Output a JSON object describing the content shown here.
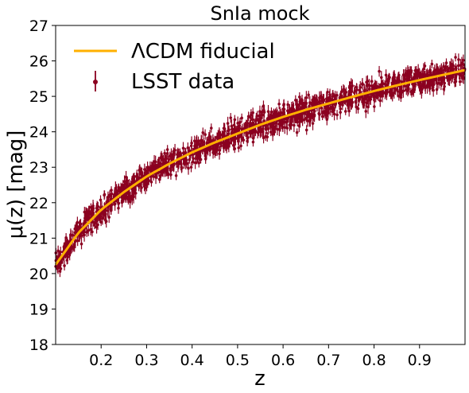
{
  "chart_data": {
    "type": "scatter",
    "title": "SnIa mock",
    "xlabel": "z",
    "ylabel": "μ(z) [mag]",
    "xlim": [
      0.1,
      1.0
    ],
    "ylim": [
      18,
      27
    ],
    "xticks": [
      0.2,
      0.3,
      0.4,
      0.5,
      0.6,
      0.7,
      0.8,
      0.9
    ],
    "xtick_labels": [
      "0.2",
      "0.3",
      "0.4",
      "0.5",
      "0.6",
      "0.7",
      "0.8",
      "0.9"
    ],
    "yticks": [
      18,
      19,
      20,
      21,
      22,
      23,
      24,
      25,
      26,
      27
    ],
    "ytick_labels": [
      "18",
      "19",
      "20",
      "21",
      "22",
      "23",
      "24",
      "25",
      "26",
      "27"
    ],
    "legend_position": "upper-left",
    "grid": false,
    "series": [
      {
        "name": "ΛCDM fiducial",
        "kind": "line",
        "color": "#FFB000",
        "x": [
          0.1,
          0.15,
          0.2,
          0.25,
          0.3,
          0.35,
          0.4,
          0.45,
          0.5,
          0.55,
          0.6,
          0.65,
          0.7,
          0.75,
          0.8,
          0.85,
          0.9,
          0.95,
          1.0
        ],
        "y": [
          20.25,
          21.15,
          21.8,
          22.3,
          22.74,
          23.1,
          23.42,
          23.7,
          23.95,
          24.2,
          24.42,
          24.62,
          24.8,
          24.98,
          25.15,
          25.31,
          25.46,
          25.6,
          25.74
        ]
      },
      {
        "name": "LSST data",
        "kind": "errorbar-scatter",
        "color": "#8B0020",
        "x_range": [
          0.1,
          1.0
        ],
        "scatter_mag": 0.18,
        "errorbar_mag": 0.15
      }
    ]
  }
}
